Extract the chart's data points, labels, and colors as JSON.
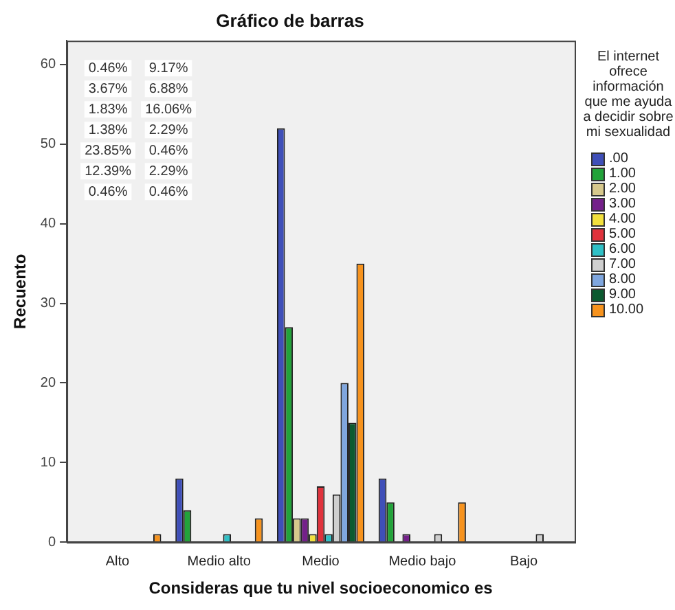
{
  "chart_data": {
    "type": "bar",
    "title": "Gráfico de barras",
    "xlabel": "Consideras que tu nivel socioeconomico es",
    "ylabel": "Recuento",
    "legend_title": "El internet ofrece información que me ayuda a decidir sobre mi sexualidad",
    "categories": [
      "Alto",
      "Medio alto",
      "Medio",
      "Medio bajo",
      "Bajo"
    ],
    "ylim": [
      0,
      63
    ],
    "yticks": [
      0,
      10,
      20,
      30,
      40,
      50,
      60
    ],
    "grid": false,
    "legend": "right",
    "series": [
      {
        "name": ".00",
        "color": "#3f4fb8",
        "values": [
          null,
          8,
          52,
          8,
          null
        ]
      },
      {
        "name": "1.00",
        "color": "#22a33a",
        "values": [
          null,
          4,
          27,
          5,
          null
        ]
      },
      {
        "name": "2.00",
        "color": "#d6c88c",
        "values": [
          null,
          null,
          3,
          null,
          null
        ]
      },
      {
        "name": "3.00",
        "color": "#74208a",
        "values": [
          null,
          null,
          3,
          1,
          null
        ]
      },
      {
        "name": "4.00",
        "color": "#f2e03c",
        "values": [
          null,
          null,
          1,
          null,
          null
        ]
      },
      {
        "name": "5.00",
        "color": "#e0323c",
        "values": [
          null,
          null,
          7,
          null,
          null
        ]
      },
      {
        "name": "6.00",
        "color": "#2fc0c6",
        "values": [
          null,
          1,
          1,
          null,
          null
        ]
      },
      {
        "name": "7.00",
        "color": "#cfcfcf",
        "values": [
          null,
          null,
          6,
          1,
          1
        ]
      },
      {
        "name": "8.00",
        "color": "#7fa6de",
        "values": [
          null,
          null,
          20,
          null,
          null
        ]
      },
      {
        "name": "9.00",
        "color": "#0b5a30",
        "values": [
          null,
          null,
          15,
          null,
          null
        ]
      },
      {
        "name": "10.00",
        "color": "#f7931e",
        "values": [
          1,
          3,
          35,
          5,
          null
        ]
      }
    ],
    "annotations": [
      "0.46%",
      "3.67%",
      "1.83%",
      "1.38%",
      "23.85%",
      "12.39%",
      "0.46%",
      "9.17%",
      "6.88%",
      "16.06%",
      "2.29%",
      "0.46%",
      "2.29%",
      "0.46%"
    ]
  }
}
